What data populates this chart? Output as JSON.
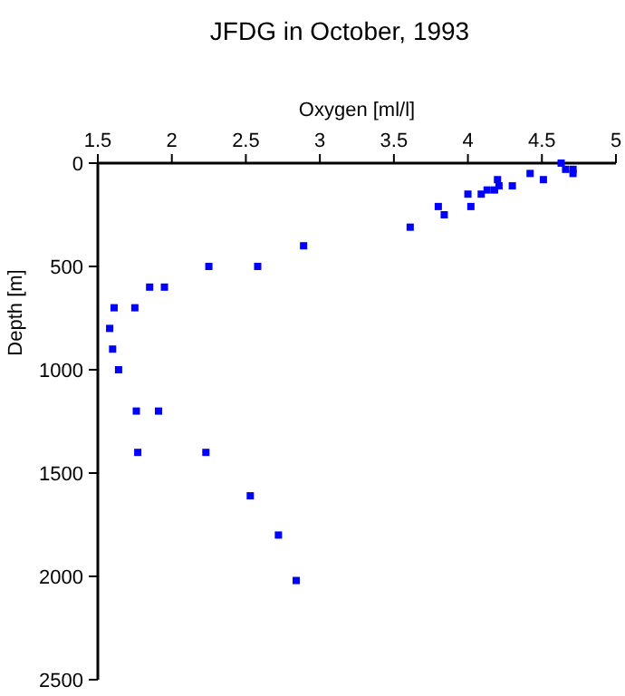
{
  "chart_data": {
    "type": "scatter",
    "title": "JFDG in October, 1993",
    "xlabel": "Oxygen [ml/l]",
    "ylabel": "Depth [m]",
    "xlim": [
      1.5,
      5
    ],
    "xticks": [
      1.5,
      2,
      2.5,
      3,
      3.5,
      4,
      4.5,
      5
    ],
    "ylim": [
      2500,
      0
    ],
    "yticks": [
      0,
      500,
      1000,
      1500,
      2000,
      2500
    ],
    "marker": "square",
    "series": [
      {
        "color": "#0000ff",
        "x": [
          4.63,
          4.66,
          4.71,
          4.71,
          4.42,
          4.51,
          4.3,
          4.2,
          4.21,
          4.18,
          4.13,
          4.09,
          4.0,
          4.02,
          3.8,
          3.84,
          3.61,
          2.89,
          2.58,
          2.25,
          1.95,
          1.85,
          1.75,
          1.61,
          1.58,
          1.6,
          1.64,
          1.76,
          1.91,
          1.77,
          2.23,
          2.53,
          2.72,
          2.84
        ],
        "values": [
          0,
          30,
          30,
          50,
          50,
          80,
          110,
          80,
          110,
          130,
          130,
          150,
          150,
          210,
          210,
          250,
          310,
          400,
          500,
          500,
          600,
          600,
          700,
          700,
          800,
          900,
          1000,
          1200,
          1200,
          1400,
          1400,
          1610,
          1800,
          2020
        ]
      }
    ]
  }
}
